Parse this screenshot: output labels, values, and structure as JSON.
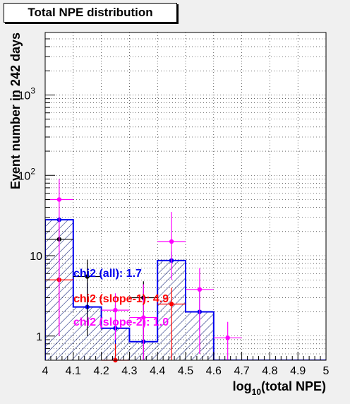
{
  "chart_data": {
    "type": "histogram",
    "title": "Total NPE distribution",
    "xlabel_main": "log",
    "xlabel_sub": "10",
    "xlabel_rest": "(total NPE)",
    "ylabel": "Event number in 242 days",
    "xlim": [
      4.0,
      5.0
    ],
    "ylim": [
      0.5,
      6000
    ],
    "log_y": true,
    "grid": true,
    "x_ticks": [
      "4",
      "4.1",
      "4.2",
      "4.3",
      "4.4",
      "4.5",
      "4.6",
      "4.7",
      "4.8",
      "4.9",
      "5"
    ],
    "y_ticks": [
      {
        "base": "1",
        "exp": ""
      },
      {
        "base": "10",
        "exp": ""
      },
      {
        "base": "10",
        "exp": "2"
      },
      {
        "base": "10",
        "exp": "3"
      }
    ],
    "bin_edges": [
      4.0,
      4.1,
      4.2,
      4.3,
      4.4,
      4.5,
      4.6,
      4.7,
      4.8,
      4.9,
      5.0
    ],
    "mc_histogram": {
      "color": "#0000ee",
      "values": [
        28,
        2.3,
        1.25,
        0.85,
        8.7,
        2.0,
        0.5,
        0.5,
        0.5,
        0.5
      ]
    },
    "points": [
      {
        "color": "#0000ee",
        "x": [
          4.05,
          4.15,
          4.25,
          4.35,
          4.45,
          4.55
        ],
        "y": [
          28,
          2.3,
          1.25,
          0.85,
          8.7,
          2.0
        ],
        "err_low": [
          0.4,
          0.85,
          0.5,
          0.35,
          0.5,
          0.85
        ],
        "err_high": [
          0.5,
          2.3,
          1.2,
          0.8,
          2.5,
          2.0
        ]
      },
      {
        "color": "#000000",
        "x": [
          4.05,
          4.15,
          4.35
        ],
        "y": [
          16,
          5.5,
          3.0
        ],
        "err_low": [
          0.6,
          4.5,
          2.6
        ],
        "err_high": [
          8,
          3.4,
          1.8
        ]
      },
      {
        "color": "#ff0000",
        "x": [
          4.05,
          4.25,
          4.45
        ],
        "y": [
          5.0,
          0.5,
          2.5
        ],
        "err_low": [
          4.0,
          0.0,
          2.3
        ],
        "err_high": [
          2,
          0.3,
          1.5
        ]
      },
      {
        "color": "#ff00ff",
        "x": [
          4.05,
          4.25,
          4.35,
          4.45,
          4.55,
          4.65
        ],
        "y": [
          50,
          2.1,
          1.7,
          15,
          3.8,
          0.95
        ],
        "err_low": [
          49,
          1.2,
          1.5,
          10,
          3.2,
          0.45
        ],
        "err_high": [
          40,
          1.3,
          2.7,
          20,
          3.2,
          0.55
        ]
      }
    ],
    "annotations": [
      {
        "text": "chi2 (all): 1.7",
        "color": "#0000ee"
      },
      {
        "text": "chi2 (slope-1): 4.9",
        "color": "#ff0000"
      },
      {
        "text": "chi2 (slope-2): 1.0",
        "color": "#ff00ff"
      }
    ]
  }
}
